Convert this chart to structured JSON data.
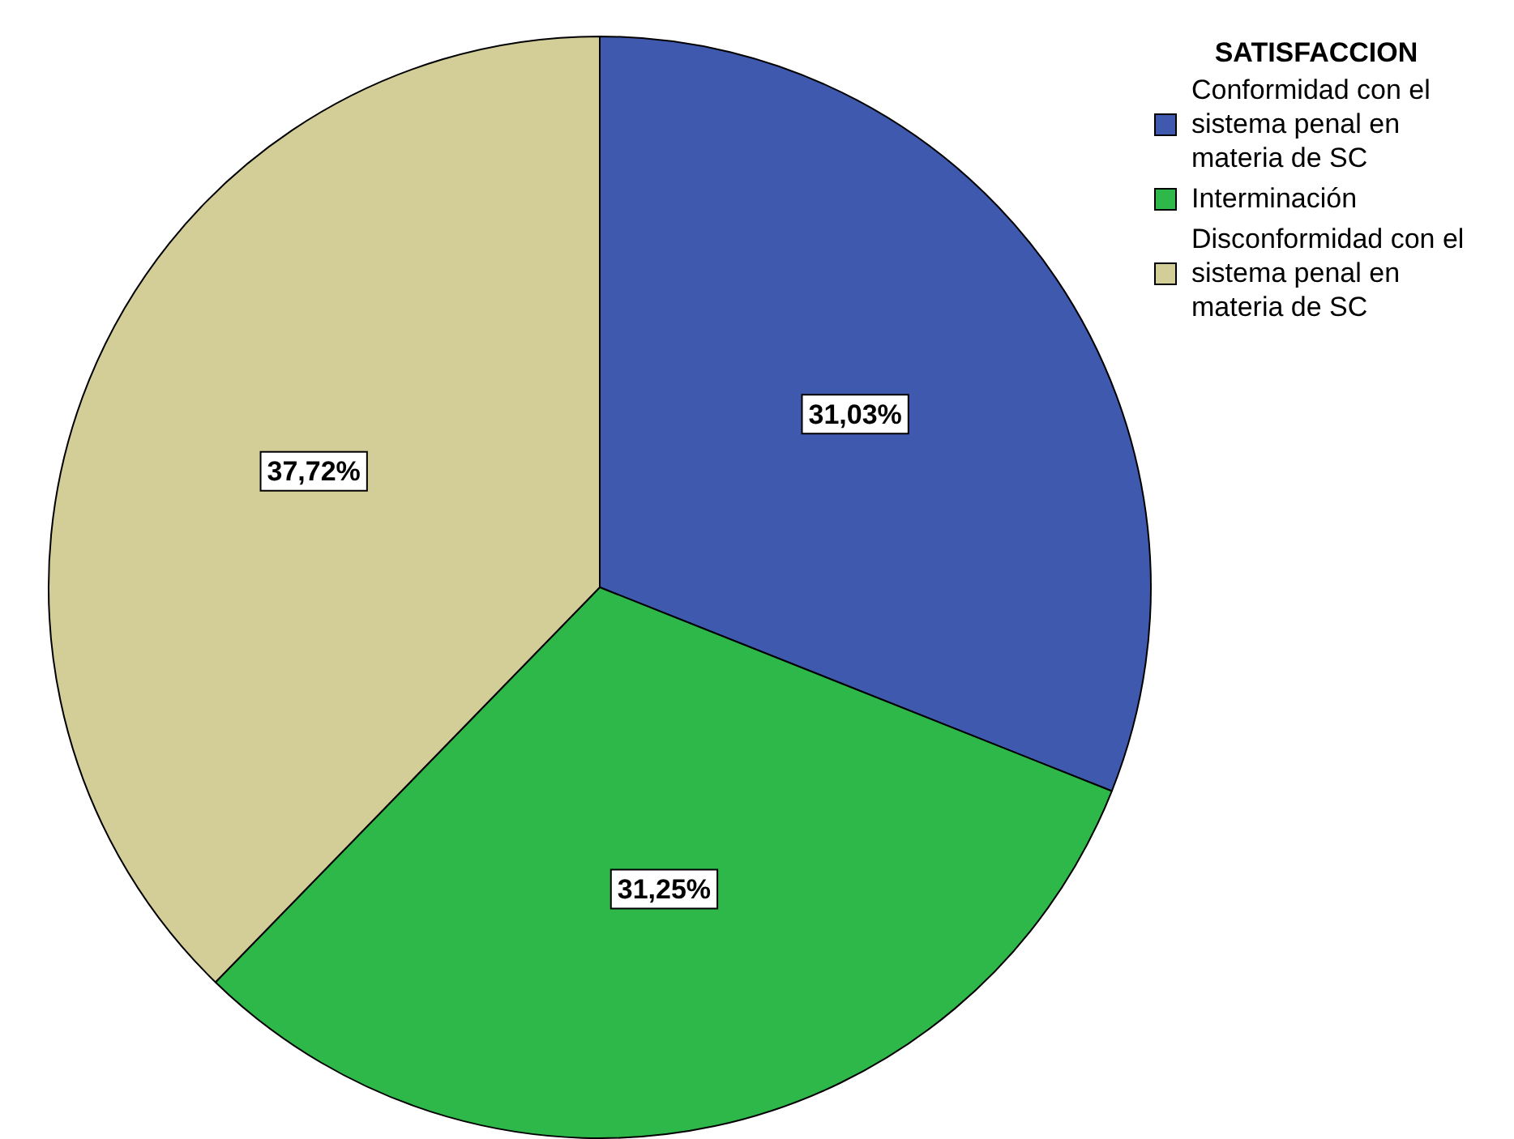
{
  "chart_data": {
    "type": "pie",
    "legend_title": "SATISFACCION",
    "categories": [
      "Conformidad con el sistema penal en materia de SC",
      "Interminación",
      "Disconformidad con el sistema penal en materia de SC"
    ],
    "values": [
      31.03,
      31.25,
      37.72
    ],
    "colors": [
      "#3f59ae",
      "#2fb84a",
      "#d3cd98"
    ],
    "value_labels": [
      "31,03%",
      "31,25%",
      "37,72%"
    ],
    "legend": "top right"
  }
}
